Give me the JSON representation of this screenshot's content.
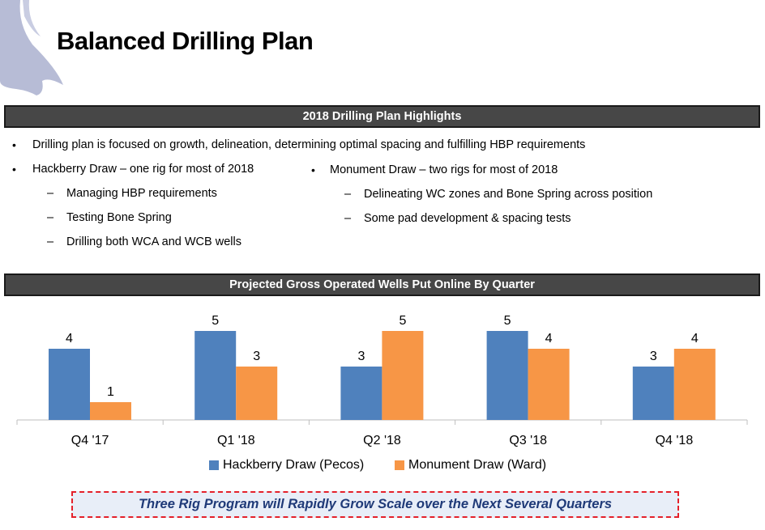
{
  "title": "Balanced Drilling Plan",
  "highlights": {
    "header": "2018 Drilling Plan Highlights",
    "bullet_main": "Drilling plan is focused on growth, delineation, determining optimal spacing and fulfilling HBP requirements",
    "left": {
      "heading": "Hackberry Draw – one rig for most of 2018",
      "items": [
        "Managing HBP requirements",
        "Testing Bone Spring",
        "Drilling both WCA and WCB wells"
      ]
    },
    "right": {
      "heading": "Monument Draw – two rigs for most of 2018",
      "items": [
        "Delineating WC zones and Bone Spring across position",
        "Some pad development & spacing tests"
      ]
    }
  },
  "chart_header": "Projected Gross Operated Wells Put Online By Quarter",
  "chart_data": {
    "type": "bar",
    "categories": [
      "Q4 '17",
      "Q1 '18",
      "Q2 '18",
      "Q3 '18",
      "Q4 '18"
    ],
    "series": [
      {
        "name": "Hackberry Draw (Pecos)",
        "values": [
          4,
          5,
          3,
          5,
          3
        ],
        "color": "#4f81bd"
      },
      {
        "name": "Monument Draw (Ward)",
        "values": [
          1,
          3,
          5,
          4,
          4
        ],
        "color": "#f79646"
      }
    ],
    "ylim": [
      0,
      5
    ],
    "grid": false,
    "data_labels": true,
    "legend": "bottom"
  },
  "callout": "Three Rig Program will Rapidly Grow Scale over the Next Several Quarters"
}
